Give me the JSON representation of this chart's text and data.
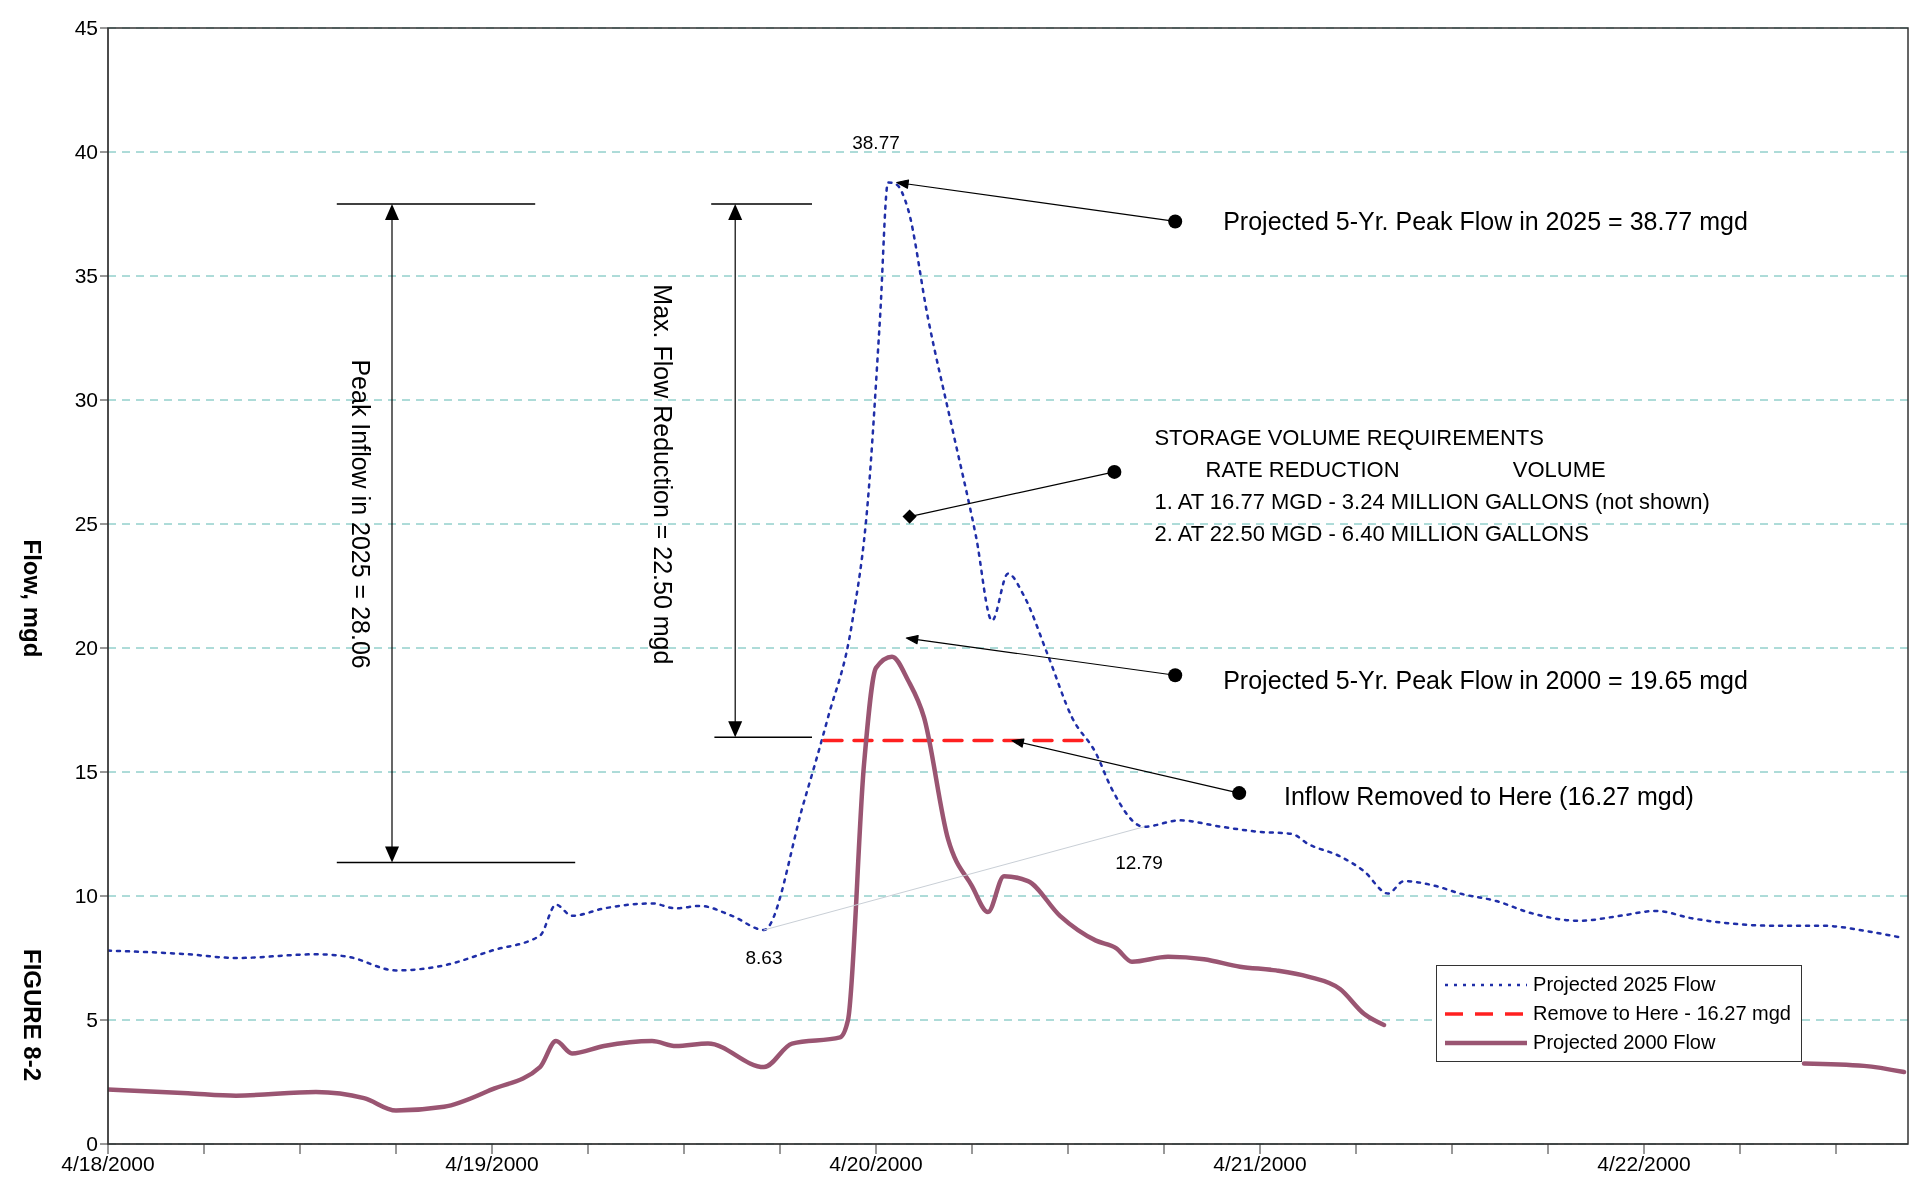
{
  "chart_data": {
    "type": "line",
    "ylabel": "Flow, mgd",
    "xlim": [
      "2000-04-18T00:00",
      "2000-04-22T16:30"
    ],
    "ylim": [
      0,
      45
    ],
    "yticks": [
      0,
      5,
      10,
      15,
      20,
      25,
      30,
      35,
      40,
      45
    ],
    "xticks": [
      {
        "value": "2000-04-18T00:00",
        "label": "4/18/2000"
      },
      {
        "value": "2000-04-18T06:00",
        "label": null
      },
      {
        "value": "2000-04-18T12:00",
        "label": null
      },
      {
        "value": "2000-04-18T18:00",
        "label": null
      },
      {
        "value": "2000-04-19T00:00",
        "label": "4/19/2000"
      },
      {
        "value": "2000-04-19T06:00",
        "label": null
      },
      {
        "value": "2000-04-19T12:00",
        "label": null
      },
      {
        "value": "2000-04-19T18:00",
        "label": null
      },
      {
        "value": "2000-04-20T00:00",
        "label": "4/20/2000"
      },
      {
        "value": "2000-04-20T06:00",
        "label": null
      },
      {
        "value": "2000-04-20T12:00",
        "label": null
      },
      {
        "value": "2000-04-20T18:00",
        "label": null
      },
      {
        "value": "2000-04-21T00:00",
        "label": "4/21/2000"
      },
      {
        "value": "2000-04-21T06:00",
        "label": null
      },
      {
        "value": "2000-04-21T12:00",
        "label": null
      },
      {
        "value": "2000-04-21T18:00",
        "label": null
      },
      {
        "value": "2000-04-22T00:00",
        "label": "4/22/2000"
      },
      {
        "value": "2000-04-22T06:00",
        "label": null
      },
      {
        "value": "2000-04-22T12:00",
        "label": null
      }
    ],
    "grid": "y",
    "legend": "bottom right",
    "series": [
      {
        "name": "Projected 2025 Flow",
        "color": "#1f2ea8",
        "line_style": "dotted",
        "x": [
          "2000-04-18T00:00",
          "2000-04-18T05:00",
          "2000-04-18T08:00",
          "2000-04-18T13:00",
          "2000-04-18T15:00",
          "2000-04-18T18:00",
          "2000-04-18T21:00",
          "2000-04-19T00:00",
          "2000-04-19T03:00",
          "2000-04-19T04:00",
          "2000-04-19T05:00",
          "2000-04-19T07:00",
          "2000-04-19T10:00",
          "2000-04-19T11:30",
          "2000-04-19T13:00",
          "2000-04-19T15:00",
          "2000-04-19T17:00",
          "2000-04-19T19:30",
          "2000-04-19T21:00",
          "2000-04-19T22:30",
          "2000-04-19T23:30",
          "2000-04-20T00:15",
          "2000-04-20T00:45",
          "2000-04-20T01:15",
          "2000-04-20T02:00",
          "2000-04-20T03:15",
          "2000-04-20T04:45",
          "2000-04-20T06:15",
          "2000-04-20T07:15",
          "2000-04-20T08:15",
          "2000-04-20T09:15",
          "2000-04-20T10:45",
          "2000-04-20T12:15",
          "2000-04-20T13:45",
          "2000-04-20T14:45",
          "2000-04-20T16:45",
          "2000-04-20T19:00",
          "2000-04-20T21:30",
          "2000-04-20T23:45",
          "2000-04-21T02:00",
          "2000-04-21T03:00",
          "2000-04-21T05:00",
          "2000-04-21T06:30",
          "2000-04-21T08:00",
          "2000-04-21T09:00",
          "2000-04-21T11:00",
          "2000-04-21T12:30",
          "2000-04-21T14:45",
          "2000-04-21T17:00",
          "2000-04-21T20:00",
          "2000-04-21T22:30",
          "2000-04-22T00:45",
          "2000-04-22T03:00",
          "2000-04-22T05:15",
          "2000-04-22T08:15",
          "2000-04-22T11:15",
          "2000-04-22T13:45",
          "2000-04-22T16:15"
        ],
        "values": [
          7.8,
          7.65,
          7.5,
          7.65,
          7.55,
          7.0,
          7.2,
          7.8,
          8.4,
          9.65,
          9.2,
          9.5,
          9.7,
          9.5,
          9.6,
          9.2,
          8.63,
          13.8,
          17.2,
          21,
          26,
          33.3,
          38.77,
          38.7,
          37.7,
          33.3,
          28.9,
          24.5,
          21.1,
          23,
          22.1,
          19.7,
          17.2,
          15.75,
          14.3,
          12.79,
          13.05,
          12.8,
          12.6,
          12.5,
          12.1,
          11.6,
          11.0,
          10.1,
          10.6,
          10.4,
          10.1,
          9.8,
          9.3,
          9.0,
          9.2,
          9.4,
          9.1,
          8.9,
          8.8,
          8.8,
          8.6,
          8.3
        ]
      },
      {
        "name": "Remove to Here - 16.27 mgd",
        "color": "#ff2020",
        "line_style": "dashed",
        "x": [
          "2000-04-19T20:45",
          "2000-04-20T13:00"
        ],
        "values": [
          16.27,
          16.27
        ]
      },
      {
        "name": "Projected 2000 Flow",
        "color": "#9a5572",
        "line_style": "solid",
        "x": [
          "2000-04-18T00:00",
          "2000-04-18T05:00",
          "2000-04-18T08:00",
          "2000-04-18T13:00",
          "2000-04-18T16:00",
          "2000-04-18T18:00",
          "2000-04-18T21:00",
          "2000-04-19T00:00",
          "2000-04-19T03:00",
          "2000-04-19T04:00",
          "2000-04-19T05:00",
          "2000-04-19T07:00",
          "2000-04-19T10:00",
          "2000-04-19T11:30",
          "2000-04-19T13:30",
          "2000-04-19T17:00",
          "2000-04-19T18:45",
          "2000-04-19T21:45",
          "2000-04-19T22:15",
          "2000-04-19T23:15",
          "2000-04-20T00:00",
          "2000-04-20T01:00",
          "2000-04-20T02:00",
          "2000-04-20T03:00",
          "2000-04-20T04:30",
          "2000-04-20T06:00",
          "2000-04-20T07:00",
          "2000-04-20T08:00",
          "2000-04-20T09:30",
          "2000-04-20T11:30",
          "2000-04-20T13:45",
          "2000-04-20T15:00",
          "2000-04-20T16:00",
          "2000-04-20T18:15",
          "2000-04-20T20:30",
          "2000-04-20T22:45",
          "2000-04-21T01:00",
          "2000-04-21T03:00",
          "2000-04-21T05:00",
          "2000-04-21T06:30",
          "2000-04-21T07:45",
          "2000-04-21T12:00",
          "2000-04-22T00:00",
          "2000-04-22T08:00",
          "2000-04-22T10:00",
          "2000-04-22T13:45",
          "2000-04-22T16:15"
        ],
        "values": [
          2.2,
          2.05,
          1.95,
          2.1,
          1.85,
          1.35,
          1.5,
          2.2,
          3.1,
          4.15,
          3.65,
          3.95,
          4.15,
          3.95,
          4.05,
          3.1,
          4.05,
          4.3,
          5.0,
          15.3,
          19.2,
          19.65,
          18.7,
          17.2,
          12.3,
          10.4,
          9.35,
          10.8,
          10.6,
          9.2,
          8.2,
          7.9,
          7.35,
          7.55,
          7.45,
          7.15,
          7.0,
          6.75,
          6.25,
          5.25,
          4.8,
          null,
          null,
          null,
          3.25,
          3.15,
          2.9
        ]
      },
      {
        "color": "#c9cfd6",
        "line_style": "solid",
        "x": [
          "2000-04-19T17:00",
          "2000-04-20T16:45"
        ],
        "values": [
          8.63,
          12.79
        ]
      }
    ],
    "annotations": [
      {
        "text": "38.77",
        "x": "2000-04-20T00:45",
        "y": 38.77
      },
      {
        "text": "8.63",
        "x": "2000-04-19T17:00",
        "y": 8.63
      },
      {
        "text": "12.79",
        "x": "2000-04-20T16:45",
        "y": 12.79
      },
      "Projected 5-Yr. Peak Flow in 2025 = 38.77 mgd",
      "Projected 5-Yr. Peak Flow in 2000 = 19.65 mgd",
      "Inflow Removed to Here (16.27 mgd)",
      "STORAGE VOLUME REQUIREMENTS",
      "RATE REDUCTION",
      "VOLUME",
      "1. AT 16.77 MGD - 3.24 MILLION GALLONS (not shown)",
      "2. AT 22.50 MGD - 6.40 MILLION GALLONS",
      "Peak Inflow in 2025 = 28.06",
      "Max. Flow Reduction = 22.50 mgd",
      "FIGURE 8-2"
    ]
  }
}
